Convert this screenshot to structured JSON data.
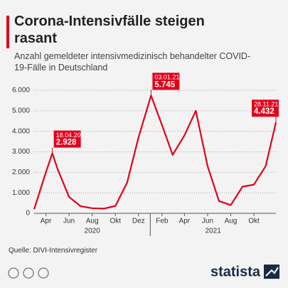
{
  "chart_data": {
    "type": "line",
    "title": "Corona-Intensivfälle steigen rasant",
    "subtitle": "Anzahl gemeldeter intensivmedizinisch behandelter COVID-19-Fälle in Deutschland",
    "source": "Quelle: DIVI-Intensivregister",
    "brand": "statista",
    "x": [
      "2020-03",
      "2020-04",
      "2020-04-18",
      "2020-05",
      "2020-06",
      "2020-07",
      "2020-08",
      "2020-09",
      "2020-10",
      "2020-11",
      "2020-12",
      "2021-01-03",
      "2021-02",
      "2021-03",
      "2021-04",
      "2021-05",
      "2021-06",
      "2021-07",
      "2021-08",
      "2021-09",
      "2021-10",
      "2021-11",
      "2021-11-28"
    ],
    "series": [
      {
        "name": "Intensivfälle",
        "color": "#e2001a",
        "values": [
          200,
          2000,
          2928,
          2200,
          800,
          350,
          250,
          230,
          360,
          1500,
          3700,
          5745,
          4300,
          2850,
          3800,
          5000,
          2300,
          600,
          400,
          1300,
          1400,
          2300,
          4432
        ],
        "value_labels": [
          null,
          null,
          "2.928",
          null,
          null,
          null,
          null,
          null,
          null,
          null,
          null,
          "5.745",
          null,
          null,
          null,
          null,
          null,
          null,
          null,
          null,
          null,
          null,
          "4.432"
        ],
        "date_labels": [
          null,
          null,
          "18.04.20",
          null,
          null,
          null,
          null,
          null,
          null,
          null,
          null,
          "03.01.21",
          null,
          null,
          null,
          null,
          null,
          null,
          null,
          null,
          null,
          null,
          "28.11.21"
        ]
      }
    ],
    "xticks": [
      {
        "value": "2020-04",
        "label": "Apr"
      },
      {
        "value": "2020-06",
        "label": "Jun"
      },
      {
        "value": "2020-08",
        "label": "Aug"
      },
      {
        "value": "2020-10",
        "label": "Okt"
      },
      {
        "value": "2020-12",
        "label": "Dez"
      },
      {
        "value": "2021-02",
        "label": "Feb"
      },
      {
        "value": "2021-04",
        "label": "Apr"
      },
      {
        "value": "2021-06",
        "label": "Jun"
      },
      {
        "value": "2021-08",
        "label": "Aug"
      },
      {
        "value": "2021-10",
        "label": "Okt"
      }
    ],
    "years": [
      "2020",
      "2021"
    ],
    "ylim": [
      0,
      6000
    ],
    "yticks": [
      0,
      {
        "value": 1000,
        "label": "1.000"
      },
      {
        "value": 2000,
        "label": "2.000"
      },
      {
        "value": 3000,
        "label": "3.000"
      },
      {
        "value": 4000,
        "label": "4.000"
      },
      {
        "value": 5000,
        "label": "5.000"
      },
      {
        "value": 6000,
        "label": "6.000"
      }
    ],
    "grid": true
  }
}
